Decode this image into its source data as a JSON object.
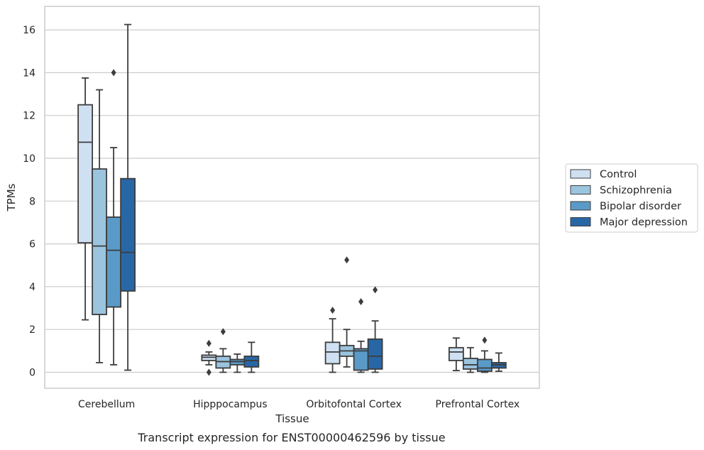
{
  "chart_data": {
    "type": "box",
    "title": "",
    "caption": "Transcript expression for ENST00000462596 by tissue",
    "xlabel": "Tissue",
    "ylabel": "TPMs",
    "ylim": [
      -0.8,
      17.0
    ],
    "yticks": [
      0,
      2,
      4,
      6,
      8,
      10,
      12,
      14,
      16
    ],
    "ytick_labels": [
      "0",
      "2",
      "4",
      "6",
      "8",
      "10",
      "12",
      "14",
      "16"
    ],
    "grid": "horizontal",
    "legend_position": "right",
    "categories": [
      "Cerebellum",
      "Hipppocampus",
      "Orbitofontal Cortex",
      "Prefrontal Cortex"
    ],
    "series": [
      {
        "name": "Control",
        "color": "#cfe0f2",
        "boxes": [
          {
            "whislo": 2.45,
            "q1": 6.05,
            "median": 10.75,
            "q3": 12.5,
            "whishi": 13.75,
            "fliers": []
          },
          {
            "whislo": 0.35,
            "q1": 0.55,
            "median": 0.7,
            "q3": 0.8,
            "whishi": 0.95,
            "fliers": [
              1.35,
              0.0
            ]
          },
          {
            "whislo": 0.0,
            "q1": 0.4,
            "median": 0.95,
            "q3": 1.4,
            "whishi": 2.5,
            "fliers": [
              2.9
            ]
          },
          {
            "whislo": 0.08,
            "q1": 0.55,
            "median": 0.95,
            "q3": 1.15,
            "whishi": 1.6,
            "fliers": []
          }
        ]
      },
      {
        "name": "Schizophrenia",
        "color": "#9bc4de",
        "boxes": [
          {
            "whislo": 0.45,
            "q1": 2.7,
            "median": 5.9,
            "q3": 9.5,
            "whishi": 13.2,
            "fliers": []
          },
          {
            "whislo": 0.0,
            "q1": 0.2,
            "median": 0.5,
            "q3": 0.75,
            "whishi": 1.1,
            "fliers": [
              1.9
            ]
          },
          {
            "whislo": 0.25,
            "q1": 0.75,
            "median": 1.0,
            "q3": 1.25,
            "whishi": 2.0,
            "fliers": [
              5.25
            ]
          },
          {
            "whislo": 0.0,
            "q1": 0.15,
            "median": 0.35,
            "q3": 0.65,
            "whishi": 1.15,
            "fliers": []
          }
        ]
      },
      {
        "name": "Bipolar disorder",
        "color": "#5a9ac8",
        "boxes": [
          {
            "whislo": 0.35,
            "q1": 3.05,
            "median": 5.7,
            "q3": 7.25,
            "whishi": 10.5,
            "fliers": [
              14.0
            ]
          },
          {
            "whislo": 0.0,
            "q1": 0.35,
            "median": 0.5,
            "q3": 0.6,
            "whishi": 0.85,
            "fliers": []
          },
          {
            "whislo": 0.0,
            "q1": 0.1,
            "median": 1.0,
            "q3": 1.1,
            "whishi": 1.45,
            "fliers": [
              3.3
            ]
          },
          {
            "whislo": 0.0,
            "q1": 0.05,
            "median": 0.2,
            "q3": 0.6,
            "whishi": 1.0,
            "fliers": [
              1.5
            ]
          }
        ]
      },
      {
        "name": "Major depression",
        "color": "#2867a6",
        "boxes": [
          {
            "whislo": 0.1,
            "q1": 3.8,
            "median": 5.6,
            "q3": 9.05,
            "whishi": 16.25,
            "fliers": []
          },
          {
            "whislo": 0.0,
            "q1": 0.25,
            "median": 0.55,
            "q3": 0.75,
            "whishi": 1.4,
            "fliers": []
          },
          {
            "whislo": 0.0,
            "q1": 0.15,
            "median": 0.75,
            "q3": 1.55,
            "whishi": 2.4,
            "fliers": [
              3.85
            ]
          },
          {
            "whislo": 0.05,
            "q1": 0.2,
            "median": 0.35,
            "q3": 0.45,
            "whishi": 0.9,
            "fliers": []
          }
        ]
      }
    ]
  }
}
